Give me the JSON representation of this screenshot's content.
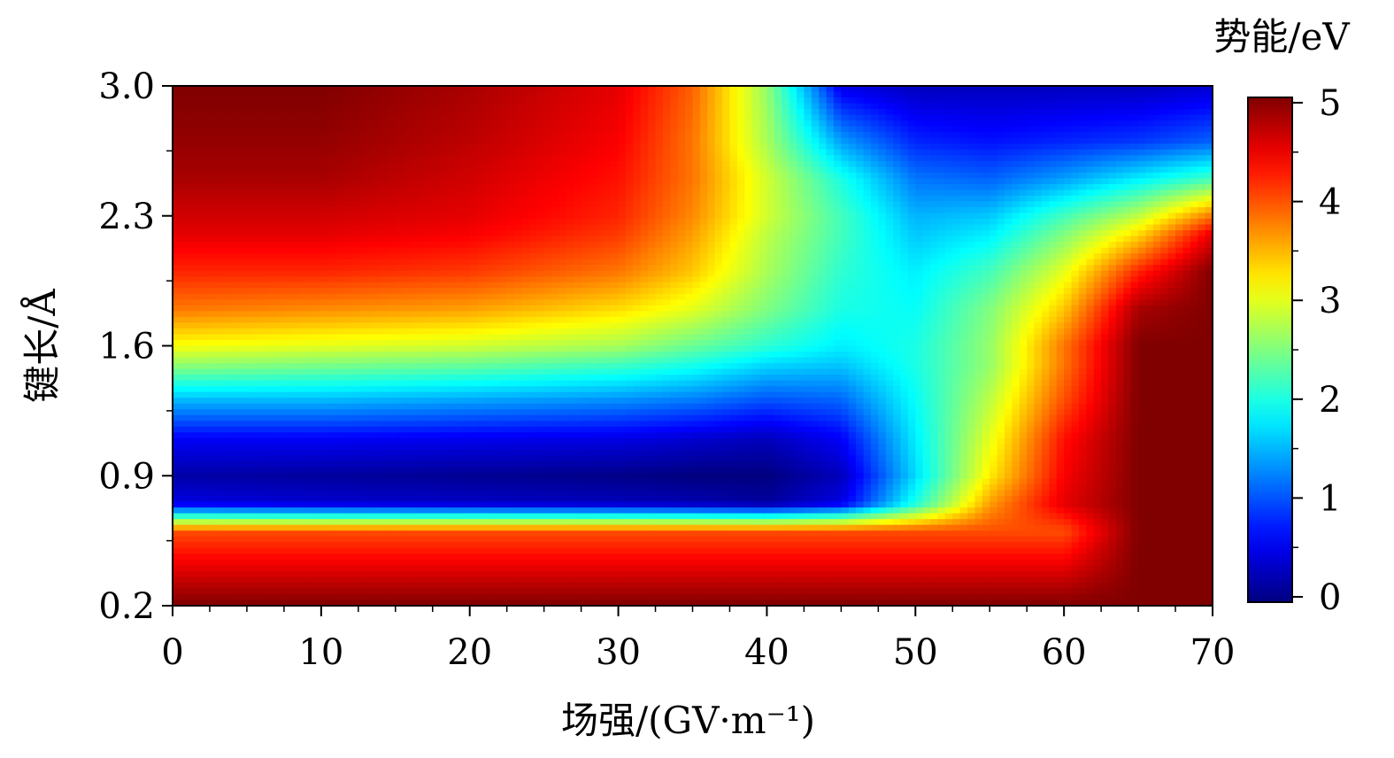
{
  "chart_data": {
    "type": "heatmap",
    "title": "",
    "xlabel": "场强/(GV·m⁻¹)",
    "ylabel": "键长/Å",
    "xlim": [
      0,
      70
    ],
    "ylim": [
      0.2,
      3.0
    ],
    "x_ticks": [
      "0",
      "10",
      "20",
      "30",
      "40",
      "50",
      "60",
      "70"
    ],
    "y_ticks": [
      "0.2",
      "0.9",
      "1.6",
      "2.3",
      "3.0"
    ],
    "colorbar": {
      "label": "势能/eV",
      "range": [
        0,
        5
      ],
      "ticks": [
        "0",
        "1",
        "2",
        "3",
        "4",
        "5"
      ],
      "colormap": "jet"
    },
    "x": [
      0,
      10,
      20,
      30,
      35,
      40,
      45,
      50,
      55,
      60,
      65,
      70
    ],
    "y": [
      0.2,
      0.6,
      0.75,
      0.9,
      1.1,
      1.3,
      1.5,
      1.6,
      1.8,
      2.0,
      2.2,
      2.3,
      2.5,
      2.7,
      3.0
    ],
    "z": [
      [
        5.0,
        5.0,
        5.0,
        5.0,
        5.0,
        5.0,
        5.0,
        5.0,
        5.0,
        5.0,
        5.0,
        5.0
      ],
      [
        4.0,
        4.0,
        4.0,
        4.0,
        4.0,
        4.0,
        4.0,
        4.0,
        4.0,
        4.0,
        5.0,
        5.0
      ],
      [
        0.5,
        0.4,
        0.35,
        0.3,
        0.25,
        0.15,
        0.5,
        2.0,
        3.6,
        4.5,
        5.0,
        5.0
      ],
      [
        0.2,
        0.15,
        0.1,
        0.05,
        0.0,
        0.0,
        0.3,
        1.7,
        3.2,
        4.4,
        5.0,
        5.0
      ],
      [
        0.6,
        0.6,
        0.55,
        0.5,
        0.4,
        0.3,
        0.6,
        1.8,
        3.0,
        4.3,
        5.0,
        5.0
      ],
      [
        1.5,
        1.5,
        1.4,
        1.3,
        1.2,
        1.0,
        1.1,
        1.9,
        2.8,
        4.0,
        5.0,
        5.0
      ],
      [
        2.6,
        2.5,
        2.4,
        2.2,
        2.0,
        1.7,
        1.6,
        2.0,
        2.6,
        3.8,
        5.0,
        5.0
      ],
      [
        3.1,
        3.0,
        2.9,
        2.7,
        2.4,
        2.1,
        1.8,
        2.0,
        2.6,
        3.8,
        5.0,
        5.0
      ],
      [
        3.8,
        3.7,
        3.6,
        3.3,
        3.0,
        2.5,
        2.0,
        1.9,
        2.5,
        3.4,
        4.8,
        5.0
      ],
      [
        4.2,
        4.2,
        4.1,
        3.8,
        3.4,
        2.7,
        2.1,
        1.8,
        2.2,
        3.0,
        4.2,
        5.0
      ],
      [
        4.5,
        4.5,
        4.4,
        4.1,
        3.6,
        2.8,
        2.2,
        1.6,
        1.8,
        2.5,
        3.3,
        4.5
      ],
      [
        4.6,
        4.6,
        4.5,
        4.2,
        3.7,
        2.9,
        2.2,
        1.5,
        1.6,
        2.2,
        2.8,
        3.8
      ],
      [
        4.8,
        4.8,
        4.6,
        4.3,
        3.8,
        2.9,
        2.0,
        1.2,
        1.1,
        1.4,
        1.8,
        2.2
      ],
      [
        4.9,
        4.9,
        4.7,
        4.4,
        3.8,
        2.7,
        1.4,
        0.8,
        0.7,
        0.8,
        0.9,
        1.1
      ],
      [
        5.0,
        5.0,
        4.8,
        4.5,
        3.9,
        2.6,
        0.5,
        0.3,
        0.3,
        0.3,
        0.3,
        0.4
      ]
    ]
  }
}
